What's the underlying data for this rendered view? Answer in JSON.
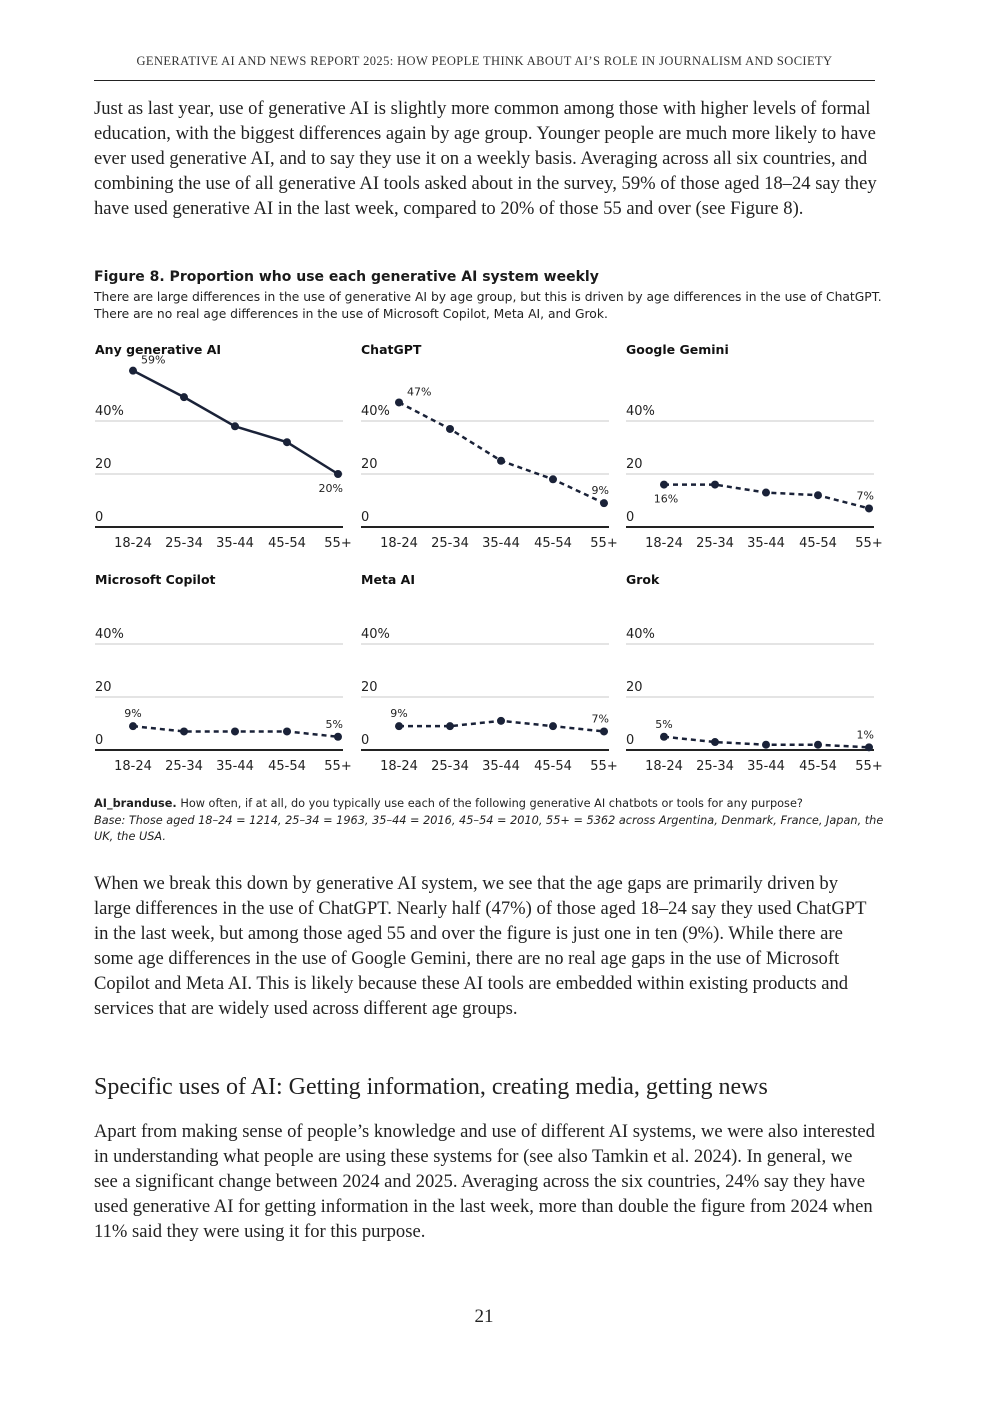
{
  "header": {
    "running_title": "GENERATIVE AI AND NEWS REPORT 2025: HOW PEOPLE THINK ABOUT AI’S ROLE IN JOURNALISM AND SOCIETY"
  },
  "paragraphs": {
    "p1": "Just as last year, use of generative AI is slightly more common among those with higher levels of formal education, with the biggest differences again by age group. Younger people are much more likely to have ever used generative AI, and to say they use it on a weekly basis. Averaging across all six countries, and combining the use of all generative AI tools asked about in the survey, 59% of those aged 18–24 say they have used generative AI in the last week, compared to 20% of those 55 and over (see Figure 8).",
    "p2": "When we break this down by generative AI system, we see that the age gaps are primarily driven by large differences in the use of ChatGPT. Nearly half (47%) of those aged 18–24 say they used ChatGPT in the last week, but among those aged 55 and over the figure is just one in ten (9%). While there are some age differences in the use of Google Gemini, there are no real age gaps in the use of Microsoft Copilot and Meta AI. This is likely because these AI tools are embedded within existing products and services that are widely used across different age groups.",
    "p3": "Apart from making sense of people’s knowledge and use of different AI systems, we were also interested in understanding what people are using these systems for (see also Tamkin et al. 2024). In general, we see a significant change between 2024 and 2025. Averaging across the six countries, 24% say they have used generative AI for getting information in the last week, more than double the figure from 2024 when 11% said they were using it for this purpose."
  },
  "section_heading": "Specific uses of AI: Getting information, creating media, getting news",
  "figure": {
    "title": "Figure 8. Proportion who use each generative AI system weekly",
    "subtitle": "There are large differences in the use of generative AI by age group, but this is driven by age differences in the use of ChatGPT. There are no real age differences in the use of Microsoft Copilot, Meta AI, and Grok.",
    "note_label": "AI_branduse.",
    "note_text": " How often, if at all, do you typically use each of the following generative AI chatbots or tools for any purpose?",
    "base": "Base: Those aged 18–24 = 1214, 25–34 = 1963, 35–44 = 2016, 45–54 = 2010, 55+ = 5362 across Argentina, Denmark, France, Japan, the UK, the USA."
  },
  "chart_data": [
    {
      "type": "line",
      "title": "Any generative AI",
      "categories": [
        "18-24",
        "25-34",
        "35-44",
        "45-54",
        "55+"
      ],
      "values": [
        59,
        49,
        38,
        32,
        20
      ],
      "labels": {
        "0": "59%",
        "4": "20%"
      },
      "line_style": "solid",
      "yticks": [
        "0",
        "20",
        "40%"
      ],
      "ylim": [
        0,
        60
      ],
      "grid": true,
      "color": "#1a2238"
    },
    {
      "type": "line",
      "title": "ChatGPT",
      "categories": [
        "18-24",
        "25-34",
        "35-44",
        "45-54",
        "55+"
      ],
      "values": [
        47,
        37,
        25,
        18,
        9
      ],
      "labels": {
        "0": "47%",
        "4": "9%"
      },
      "line_style": "dashed",
      "yticks": [
        "0",
        "20",
        "40%"
      ],
      "ylim": [
        0,
        60
      ],
      "grid": true,
      "color": "#1a2238"
    },
    {
      "type": "line",
      "title": "Google Gemini",
      "categories": [
        "18-24",
        "25-34",
        "35-44",
        "45-54",
        "55+"
      ],
      "values": [
        16,
        16,
        13,
        12,
        7
      ],
      "labels": {
        "0": "16%",
        "4": "7%"
      },
      "line_style": "dashed",
      "yticks": [
        "0",
        "20",
        "40%"
      ],
      "ylim": [
        0,
        60
      ],
      "grid": true,
      "color": "#1a2238"
    },
    {
      "type": "line",
      "title": "Microsoft Copilot",
      "categories": [
        "18-24",
        "25-34",
        "35-44",
        "45-54",
        "55+"
      ],
      "values": [
        9,
        7,
        7,
        7,
        5
      ],
      "labels": {
        "0": "9%",
        "4": "5%"
      },
      "line_style": "dashed",
      "yticks": [
        "0",
        "20",
        "40%"
      ],
      "ylim": [
        0,
        60
      ],
      "grid": true,
      "color": "#1a2238"
    },
    {
      "type": "line",
      "title": "Meta AI",
      "categories": [
        "18-24",
        "25-34",
        "35-44",
        "45-54",
        "55+"
      ],
      "values": [
        9,
        9,
        11,
        9,
        7
      ],
      "labels": {
        "0": "9%",
        "4": "7%"
      },
      "line_style": "dashed",
      "yticks": [
        "0",
        "20",
        "40%"
      ],
      "ylim": [
        0,
        60
      ],
      "grid": true,
      "color": "#1a2238"
    },
    {
      "type": "line",
      "title": "Grok",
      "categories": [
        "18-24",
        "25-34",
        "35-44",
        "45-54",
        "55+"
      ],
      "values": [
        5,
        3,
        2,
        2,
        1
      ],
      "labels": {
        "0": "5%",
        "4": "1%"
      },
      "line_style": "dashed",
      "yticks": [
        "0",
        "20",
        "40%"
      ],
      "ylim": [
        0,
        60
      ],
      "grid": true,
      "color": "#1a2238"
    }
  ],
  "page_number": "21"
}
